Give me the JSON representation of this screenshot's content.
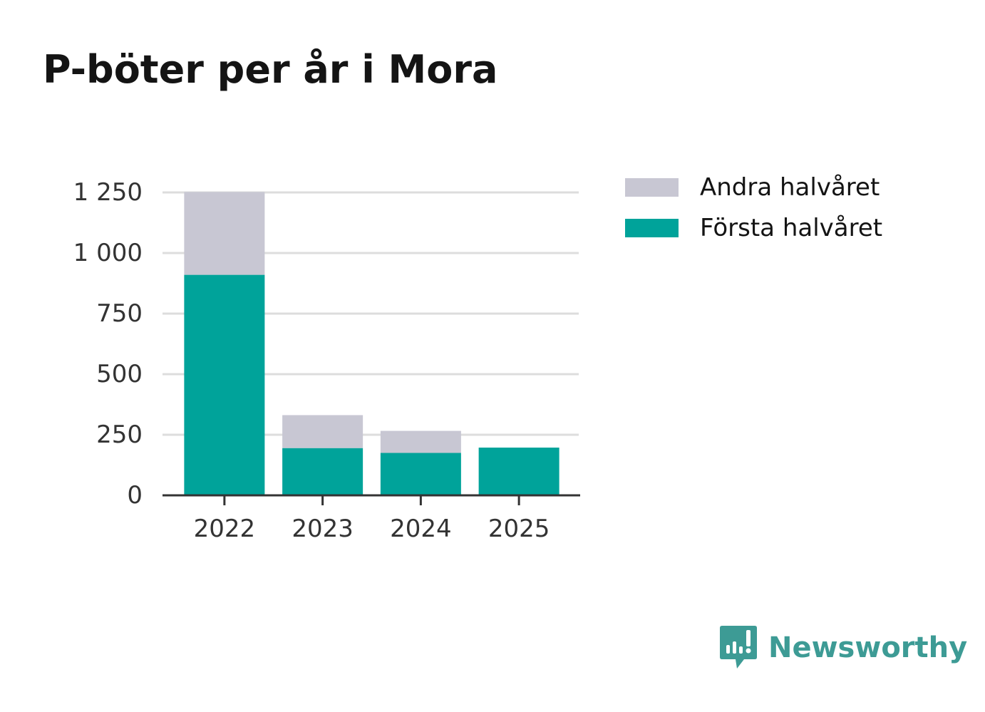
{
  "chart_data": {
    "type": "bar",
    "stacked": true,
    "title": "P-böter per år i Mora",
    "categories": [
      "2022",
      "2023",
      "2024",
      "2025"
    ],
    "series": [
      {
        "name": "Första halvåret",
        "values": [
          910,
          195,
          175,
          197
        ],
        "color": "#00a39a"
      },
      {
        "name": "Andra halvåret",
        "values": [
          342,
          136,
          91,
          0
        ],
        "color": "#c8c7d3"
      }
    ],
    "legend_order": [
      "Andra halvåret",
      "Första halvåret"
    ],
    "legend_position": "top-right",
    "ylim": [
      0,
      1250
    ],
    "yticks": [
      0,
      250,
      500,
      750,
      1000,
      1250
    ],
    "ytick_labels": [
      "0",
      "250",
      "500",
      "750",
      "1 000",
      "1 250"
    ],
    "grid": true,
    "xlabel": "",
    "ylabel": ""
  },
  "branding": {
    "name": "Newsworthy",
    "color": "#3d9b95",
    "logo_icon": "newsworthy-logo-icon"
  }
}
